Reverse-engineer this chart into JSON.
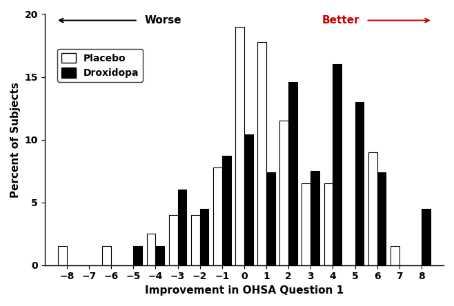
{
  "x_values": [
    -8,
    -7,
    -6,
    -5,
    -4,
    -3,
    -2,
    -1,
    0,
    1,
    2,
    3,
    4,
    5,
    6,
    7,
    8
  ],
  "placebo": [
    1.5,
    0,
    1.5,
    0,
    2.5,
    4.0,
    4.0,
    7.8,
    19.0,
    17.8,
    11.5,
    6.5,
    6.5,
    0,
    9.0,
    1.5,
    0
  ],
  "droxidopa": [
    0,
    0,
    0,
    1.5,
    1.5,
    6.0,
    4.5,
    8.7,
    10.4,
    7.4,
    14.6,
    7.5,
    16.0,
    13.0,
    7.4,
    0,
    4.5
  ],
  "placebo_color": "#ffffff",
  "droxidopa_color": "#000000",
  "bar_edge_color": "#000000",
  "xlabel": "Improvement in OHSA Question 1",
  "ylabel": "Percent of Subjects",
  "ylim": [
    0,
    20
  ],
  "yticks": [
    0,
    5,
    10,
    15,
    20
  ],
  "xlim": [
    -9,
    9
  ],
  "xticks": [
    -8,
    -7,
    -6,
    -5,
    -4,
    -3,
    -2,
    -1,
    0,
    1,
    2,
    3,
    4,
    5,
    6,
    7,
    8
  ],
  "bar_width": 0.4,
  "worse_label": "Worse",
  "better_label": "Better",
  "legend_labels": [
    "Placebo",
    "Droxidopa"
  ],
  "worse_color": "#000000",
  "better_color": "#cc0000",
  "xlabel_fontsize": 11,
  "ylabel_fontsize": 11,
  "tick_fontsize": 10,
  "legend_fontsize": 10,
  "annotation_fontsize": 11
}
